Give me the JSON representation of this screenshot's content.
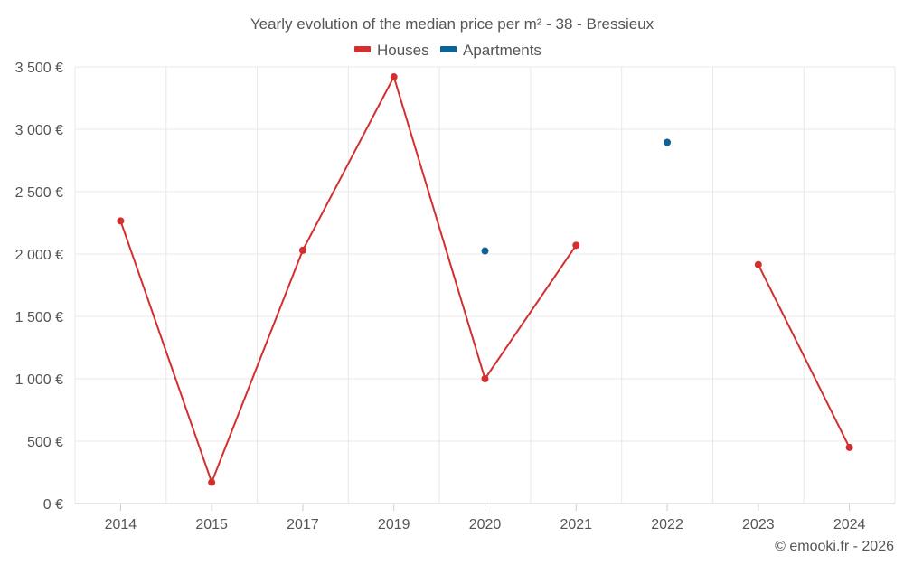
{
  "chart_data": {
    "type": "line",
    "title": "Yearly evolution of the median price per m² - 38 - Bressieux",
    "categories": [
      "2014",
      "2015",
      "2017",
      "2019",
      "2020",
      "2021",
      "2022",
      "2023",
      "2024"
    ],
    "series": [
      {
        "name": "Houses",
        "color": "#d32f2f",
        "values": [
          2265,
          170,
          2030,
          3420,
          1000,
          2070,
          null,
          1915,
          450
        ]
      },
      {
        "name": "Apartments",
        "color": "#0d6397",
        "values": [
          null,
          null,
          null,
          null,
          2025,
          null,
          2895,
          null,
          null
        ]
      }
    ],
    "y_ticks": [
      "0 €",
      "500 €",
      "1 000 €",
      "1 500 €",
      "2 000 €",
      "2 500 €",
      "3 000 €",
      "3 500 €"
    ],
    "ylim": [
      0,
      3500
    ],
    "xlabel": "",
    "ylabel": "",
    "grid": true,
    "legend_position": "top-center",
    "credit": "© emooki.fr - 2026"
  }
}
